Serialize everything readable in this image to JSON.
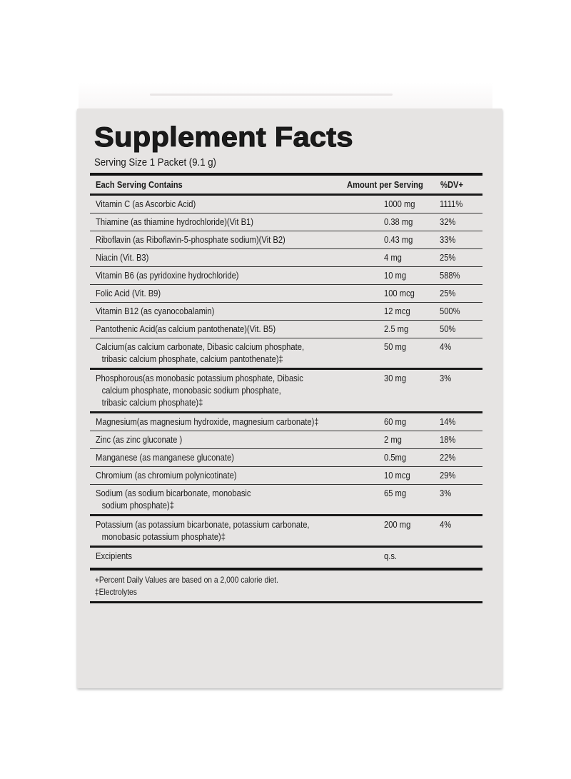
{
  "panel": {
    "title": "Supplement Facts",
    "serving_size": "Serving Size 1 Packet (9.1 g)"
  },
  "table": {
    "headers": {
      "name": "Each Serving Contains",
      "amount": "Amount per Serving",
      "dv": "%DV+"
    },
    "rows": [
      {
        "name": "Vitamin C (as Ascorbic Acid)",
        "cont": "",
        "amount": "1000 mg",
        "dv": "1111%"
      },
      {
        "name": "Thiamine (as thiamine hydrochloride)(Vit B1)",
        "cont": "",
        "amount": "0.38 mg",
        "dv": "32%"
      },
      {
        "name": "Riboflavin (as Riboflavin-5-phosphate sodium)(Vit B2)",
        "cont": "",
        "amount": "0.43 mg",
        "dv": "33%"
      },
      {
        "name": "Niacin (Vit. B3)",
        "cont": "",
        "amount": "4 mg",
        "dv": "25%"
      },
      {
        "name": "Vitamin B6 (as pyridoxine hydrochloride)",
        "cont": "",
        "amount": "10 mg",
        "dv": "588%"
      },
      {
        "name": "Folic Acid (Vit. B9)",
        "cont": "",
        "amount": "100 mcg",
        "dv": "25%"
      },
      {
        "name": "Vitamin B12 (as cyanocobalamin)",
        "cont": "",
        "amount": "12 mcg",
        "dv": "500%"
      },
      {
        "name": "Pantothenic Acid(as calcium pantothenate)(Vit. B5)",
        "cont": "",
        "amount": "2.5 mg",
        "dv": "50%"
      },
      {
        "name": "Calcium(as calcium carbonate, Dibasic calcium phosphate,",
        "cont": "tribasic calcium phosphate, calcium pantothenate)‡",
        "amount": "50 mg",
        "dv": "4%"
      },
      {
        "name": "Phosphorous(as monobasic potassium phosphate, Dibasic",
        "cont": "calcium phosphate, monobasic sodium phosphate,",
        "cont2": "tribasic calcium phosphate)‡",
        "amount": "30 mg",
        "dv": "3%"
      },
      {
        "name": "Magnesium(as magnesium hydroxide, magnesium carbonate)‡",
        "cont": "",
        "amount": "60 mg",
        "dv": "14%"
      },
      {
        "name": "Zinc (as zinc gluconate )",
        "cont": "",
        "amount": "2 mg",
        "dv": "18%"
      },
      {
        "name": "Manganese (as manganese gluconate)",
        "cont": "",
        "amount": "0.5mg",
        "dv": "22%"
      },
      {
        "name": "Chromium (as chromium polynicotinate)",
        "cont": "",
        "amount": "10 mcg",
        "dv": "29%"
      },
      {
        "name": "Sodium (as sodium bicarbonate, monobasic",
        "cont": "sodium phosphate)‡",
        "amount": "65 mg",
        "dv": "3%"
      },
      {
        "name": "Potassium (as potassium bicarbonate, potassium carbonate,",
        "cont": "monobasic potassium phosphate)‡",
        "amount": "200 mg",
        "dv": "4%"
      },
      {
        "name": "Excipients",
        "cont": "",
        "amount": "q.s.",
        "dv": ""
      }
    ]
  },
  "footnotes": {
    "dv_note": "+Percent Daily Values are based on a 2,000 calorie diet.",
    "electrolytes_note": "‡Electrolytes"
  }
}
